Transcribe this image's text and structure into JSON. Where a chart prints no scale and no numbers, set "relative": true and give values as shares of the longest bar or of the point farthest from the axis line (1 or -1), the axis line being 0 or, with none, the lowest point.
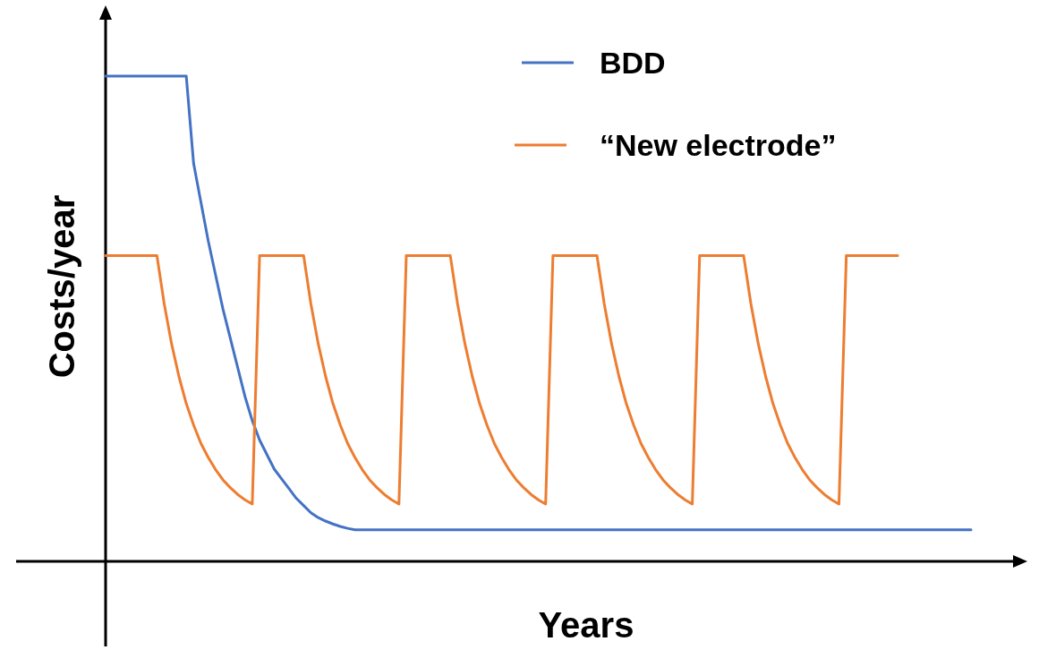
{
  "chart_data": {
    "type": "line",
    "relative": true,
    "xlabel": "Years",
    "ylabel": "Costs/year",
    "legend": "top right",
    "categories": [
      null,
      null,
      null,
      null,
      null,
      null,
      null,
      null,
      null,
      null,
      null,
      null,
      null,
      null,
      null,
      null,
      null,
      null,
      null,
      null,
      null,
      null,
      null,
      null,
      null,
      null,
      null,
      null,
      null,
      null,
      null,
      null,
      null,
      null,
      null,
      null,
      null,
      null,
      null,
      null,
      null,
      null,
      null,
      null,
      null,
      null,
      null,
      null,
      null,
      null,
      null,
      null,
      null,
      null,
      null,
      null,
      null,
      null,
      null,
      null,
      null,
      null,
      null,
      null,
      null,
      null,
      null,
      null,
      null,
      null,
      null,
      null,
      null,
      null,
      null,
      null,
      null,
      null,
      null,
      null,
      null,
      null,
      null,
      null,
      null,
      null,
      null,
      null,
      null,
      null,
      null,
      null,
      null,
      null,
      null,
      null,
      null,
      null,
      null,
      null,
      null,
      null,
      null,
      null,
      null,
      null,
      null,
      null,
      null,
      null,
      null,
      null,
      null,
      null,
      null,
      null,
      null,
      null,
      null
    ],
    "series": [
      {
        "name": "BDD",
        "color": "#4472c4",
        "values": [
          1,
          1,
          1,
          1,
          1,
          1,
          1,
          1,
          1,
          1,
          1,
          1,
          0.82,
          0.74,
          0.66,
          0.59,
          0.52,
          0.46,
          0.4,
          0.34,
          0.29,
          0.25,
          0.22,
          0.19,
          0.17,
          0.15,
          0.13,
          0.115,
          0.1,
          0.09,
          0.083,
          0.077,
          0.072,
          0.068,
          0.065,
          0.065,
          0.065,
          0.065,
          0.065,
          0.065,
          0.065,
          0.065,
          0.065,
          0.065,
          0.065,
          0.065,
          0.065,
          0.065,
          0.065,
          0.065,
          0.065,
          0.065,
          0.065,
          0.065,
          0.065,
          0.065,
          0.065,
          0.065,
          0.065,
          0.065,
          0.065,
          0.065,
          0.065,
          0.065,
          0.065,
          0.065,
          0.065,
          0.065,
          0.065,
          0.065,
          0.065,
          0.065,
          0.065,
          0.065,
          0.065,
          0.065,
          0.065,
          0.065,
          0.065,
          0.065,
          0.065,
          0.065,
          0.065,
          0.065,
          0.065,
          0.065,
          0.065,
          0.065,
          0.065,
          0.065,
          0.065,
          0.065,
          0.065,
          0.065,
          0.065,
          0.065,
          0.065,
          0.065,
          0.065,
          0.065,
          0.065,
          0.065,
          0.065,
          0.065,
          0.065,
          0.065,
          0.065,
          0.065,
          0.065,
          0.065,
          0.065,
          0.065,
          0.065,
          0.065,
          0.065,
          0.065,
          0.065,
          0.065,
          0.065
        ]
      },
      {
        "name": "“New electrode”",
        "color": "#ed7d31",
        "values": [
          0.63,
          0.63,
          0.63,
          0.63,
          0.63,
          0.63,
          0.63,
          0.63,
          0.53,
          0.448,
          0.381,
          0.325,
          0.281,
          0.243,
          0.214,
          0.189,
          0.168,
          0.152,
          0.138,
          0.127,
          0.118,
          0.63,
          0.63,
          0.63,
          0.63,
          0.63,
          0.63,
          0.63,
          0.53,
          0.448,
          0.381,
          0.325,
          0.281,
          0.243,
          0.214,
          0.189,
          0.168,
          0.152,
          0.138,
          0.127,
          0.118,
          0.63,
          0.63,
          0.63,
          0.63,
          0.63,
          0.63,
          0.63,
          0.53,
          0.448,
          0.381,
          0.325,
          0.281,
          0.243,
          0.214,
          0.189,
          0.168,
          0.152,
          0.138,
          0.127,
          0.118,
          0.63,
          0.63,
          0.63,
          0.63,
          0.63,
          0.63,
          0.63,
          0.53,
          0.448,
          0.381,
          0.325,
          0.281,
          0.243,
          0.214,
          0.189,
          0.168,
          0.152,
          0.138,
          0.127,
          0.118,
          0.63,
          0.63,
          0.63,
          0.63,
          0.63,
          0.63,
          0.63,
          0.53,
          0.448,
          0.381,
          0.325,
          0.281,
          0.243,
          0.214,
          0.189,
          0.168,
          0.152,
          0.138,
          0.127,
          0.118,
          0.63,
          0.63,
          0.63,
          0.63,
          0.63,
          0.63,
          0.63,
          0.63,
          null,
          null,
          null,
          null,
          null,
          null,
          null,
          null,
          null,
          null
        ]
      }
    ]
  }
}
